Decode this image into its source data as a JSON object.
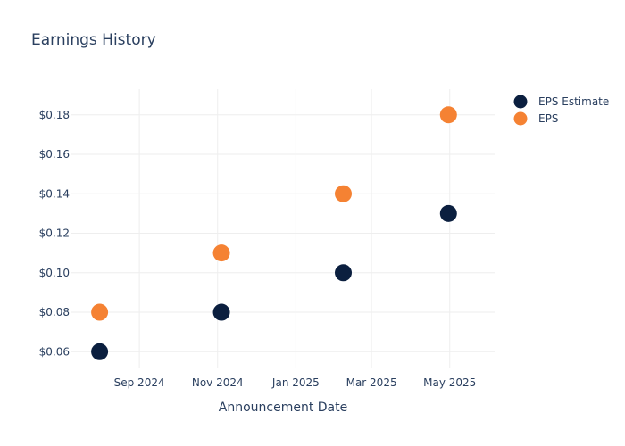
{
  "chart_data": {
    "type": "scatter",
    "title": "Earnings History",
    "xlabel": "Announcement Date",
    "ylabel": "",
    "xlim": [
      "2024-07-10",
      "2025-06-05"
    ],
    "ylim": [
      0.052,
      0.193
    ],
    "x_ticks": [
      {
        "date": "2024-09-01",
        "label": "Sep 2024"
      },
      {
        "date": "2024-11-01",
        "label": "Nov 2024"
      },
      {
        "date": "2025-01-01",
        "label": "Jan 2025"
      },
      {
        "date": "2025-03-01",
        "label": "Mar 2025"
      },
      {
        "date": "2025-05-01",
        "label": "May 2025"
      }
    ],
    "y_ticks": [
      {
        "value": 0.06,
        "label": "$0.06"
      },
      {
        "value": 0.08,
        "label": "$0.08"
      },
      {
        "value": 0.1,
        "label": "$0.10"
      },
      {
        "value": 0.12,
        "label": "$0.12"
      },
      {
        "value": 0.14,
        "label": "$0.14"
      },
      {
        "value": 0.16,
        "label": "$0.16"
      },
      {
        "value": 0.18,
        "label": "$0.18"
      }
    ],
    "grid": true,
    "legend_position": "top-right",
    "series": [
      {
        "name": "EPS Estimate",
        "color": "#0b1f3f",
        "points": [
          {
            "x": "2024-08-01",
            "y": 0.06
          },
          {
            "x": "2024-11-04",
            "y": 0.08
          },
          {
            "x": "2025-02-07",
            "y": 0.1
          },
          {
            "x": "2025-04-30",
            "y": 0.13
          }
        ]
      },
      {
        "name": "EPS",
        "color": "#f58233",
        "points": [
          {
            "x": "2024-08-01",
            "y": 0.08
          },
          {
            "x": "2024-11-04",
            "y": 0.11
          },
          {
            "x": "2025-02-07",
            "y": 0.14
          },
          {
            "x": "2025-04-30",
            "y": 0.18
          }
        ]
      }
    ]
  }
}
